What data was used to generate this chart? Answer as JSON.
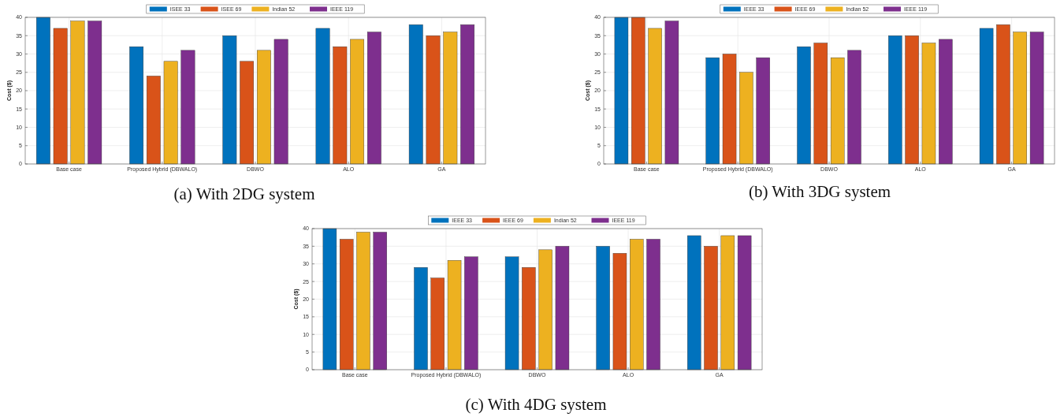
{
  "chart_data": [
    {
      "type": "bar",
      "title": "(a) With 2DG system",
      "ylabel": "Cost ($)",
      "categories": [
        "Base case",
        "Proposed Hybrid (DBWALO)",
        "DBWO",
        "ALO",
        "GA"
      ],
      "ylim": [
        0,
        40
      ],
      "yticks": [
        0,
        5,
        10,
        15,
        20,
        25,
        30,
        35,
        40
      ],
      "grid": true,
      "legend": "top",
      "series": [
        {
          "name": "ISEE 33",
          "color": "#0072bd",
          "values": [
            40,
            32,
            35,
            37,
            38
          ]
        },
        {
          "name": "ISEE 69",
          "color": "#d95319",
          "values": [
            37,
            24,
            28,
            32,
            35
          ]
        },
        {
          "name": "Indian 52",
          "color": "#edb120",
          "values": [
            39,
            28,
            31,
            34,
            36
          ]
        },
        {
          "name": "IEEE 119",
          "color": "#7e2f8e",
          "values": [
            39,
            31,
            34,
            36,
            38
          ]
        }
      ]
    },
    {
      "type": "bar",
      "title": "(b) With 3DG system",
      "ylabel": "Cost ($)",
      "categories": [
        "Base case",
        "Proposed Hybrid (DBWALO)",
        "DBWO",
        "ALO",
        "GA"
      ],
      "ylim": [
        0,
        40
      ],
      "yticks": [
        0,
        5,
        10,
        15,
        20,
        25,
        30,
        35,
        40
      ],
      "grid": true,
      "legend": "top",
      "series": [
        {
          "name": "IEEE 33",
          "color": "#0072bd",
          "values": [
            40,
            29,
            32,
            35,
            37
          ]
        },
        {
          "name": "IEEE 69",
          "color": "#d95319",
          "values": [
            40,
            30,
            33,
            35,
            38
          ]
        },
        {
          "name": "Indian 52",
          "color": "#edb120",
          "values": [
            37,
            25,
            29,
            33,
            36
          ]
        },
        {
          "name": "IEEE 119",
          "color": "#7e2f8e",
          "values": [
            39,
            29,
            31,
            34,
            36
          ]
        }
      ]
    },
    {
      "type": "bar",
      "title": "(c) With 4DG system",
      "ylabel": "Cost ($)",
      "categories": [
        "Base case",
        "Proposed Hybrid (DBWALO)",
        "DBWO",
        "ALO",
        "GA"
      ],
      "ylim": [
        0,
        40
      ],
      "yticks": [
        0,
        5,
        10,
        15,
        20,
        25,
        30,
        35,
        40
      ],
      "grid": true,
      "legend": "top",
      "series": [
        {
          "name": "IEEE 33",
          "color": "#0072bd",
          "values": [
            40,
            29,
            32,
            35,
            38
          ]
        },
        {
          "name": "IEEE 69",
          "color": "#d95319",
          "values": [
            37,
            26,
            29,
            33,
            35
          ]
        },
        {
          "name": "Indian 52",
          "color": "#edb120",
          "values": [
            39,
            31,
            34,
            37,
            38
          ]
        },
        {
          "name": "IEEE 119",
          "color": "#7e2f8e",
          "values": [
            39,
            32,
            35,
            37,
            38
          ]
        }
      ]
    }
  ]
}
